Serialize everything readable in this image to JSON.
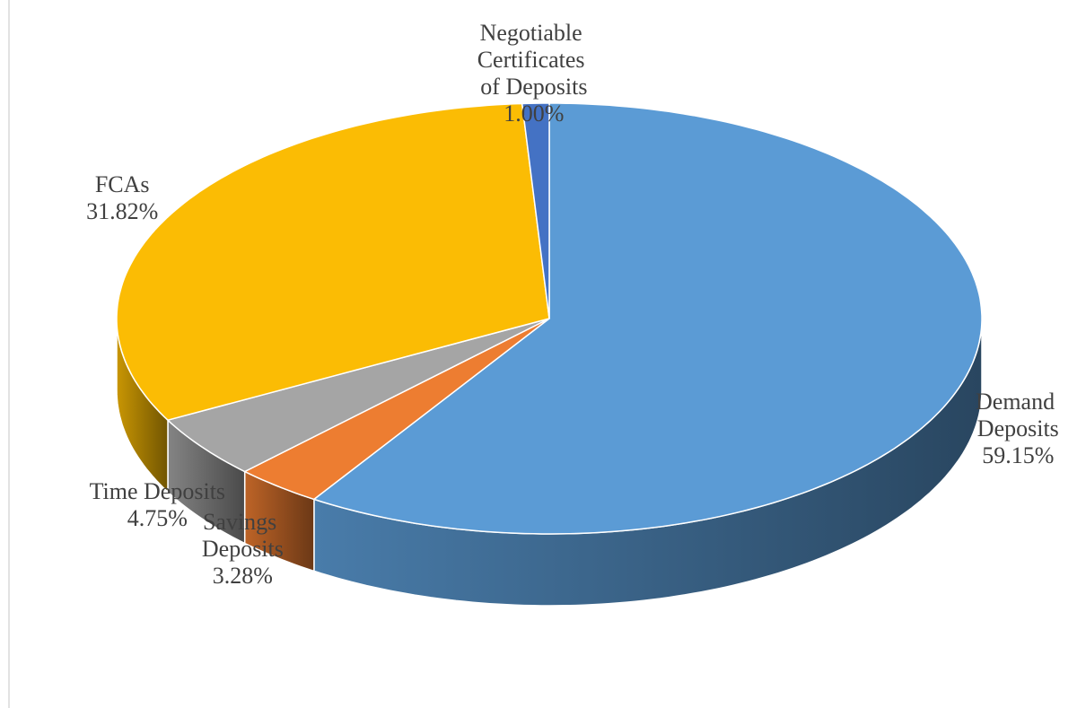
{
  "chart_data": {
    "type": "pie",
    "categories": [
      "Demand Deposits",
      "Savings Deposits",
      "Time Deposits",
      "FCAs",
      "Negotiable Certificates of Deposits"
    ],
    "values": [
      59.15,
      3.28,
      4.75,
      31.82,
      1.0
    ],
    "value_labels": [
      "59.15%",
      "3.28%",
      "4.75%",
      "31.82%",
      "1.00%"
    ],
    "colors": [
      "#5b9bd5",
      "#ed7d31",
      "#a5a5a5",
      "#fbbc04",
      "#4472c4"
    ]
  }
}
